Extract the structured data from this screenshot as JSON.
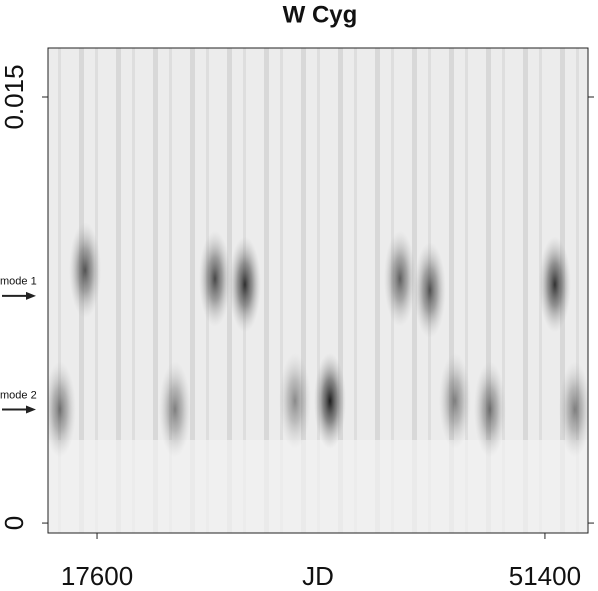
{
  "chart_data": {
    "type": "heatmap",
    "title": "W Cyg",
    "xlabel": "JD",
    "xlim": [
      13900,
      54650
    ],
    "xticks": [
      17600,
      51400
    ],
    "ylim": [
      -0.00035,
      0.016725
    ],
    "yticks": [
      0,
      0.015
    ],
    "peaks": {
      "x": [
        16700,
        26500,
        28760,
        35180,
        40460,
        42720,
        52150,
        14800,
        23480,
        32540,
        44610,
        47250,
        53660
      ],
      "y": [
        0.0089,
        0.0086,
        0.0084,
        0.0043,
        0.0086,
        0.0082,
        0.0084,
        0.004,
        0.004,
        0.0043,
        0.0043,
        0.004,
        0.004
      ],
      "intensity": [
        0.7,
        0.75,
        0.85,
        0.95,
        0.65,
        0.7,
        0.85,
        0.55,
        0.5,
        0.45,
        0.5,
        0.55,
        0.5
      ]
    },
    "annotations": [
      {
        "text": "mode 1",
        "y": 0.008
      },
      {
        "text": "mode 2",
        "y": 0.004
      }
    ]
  }
}
